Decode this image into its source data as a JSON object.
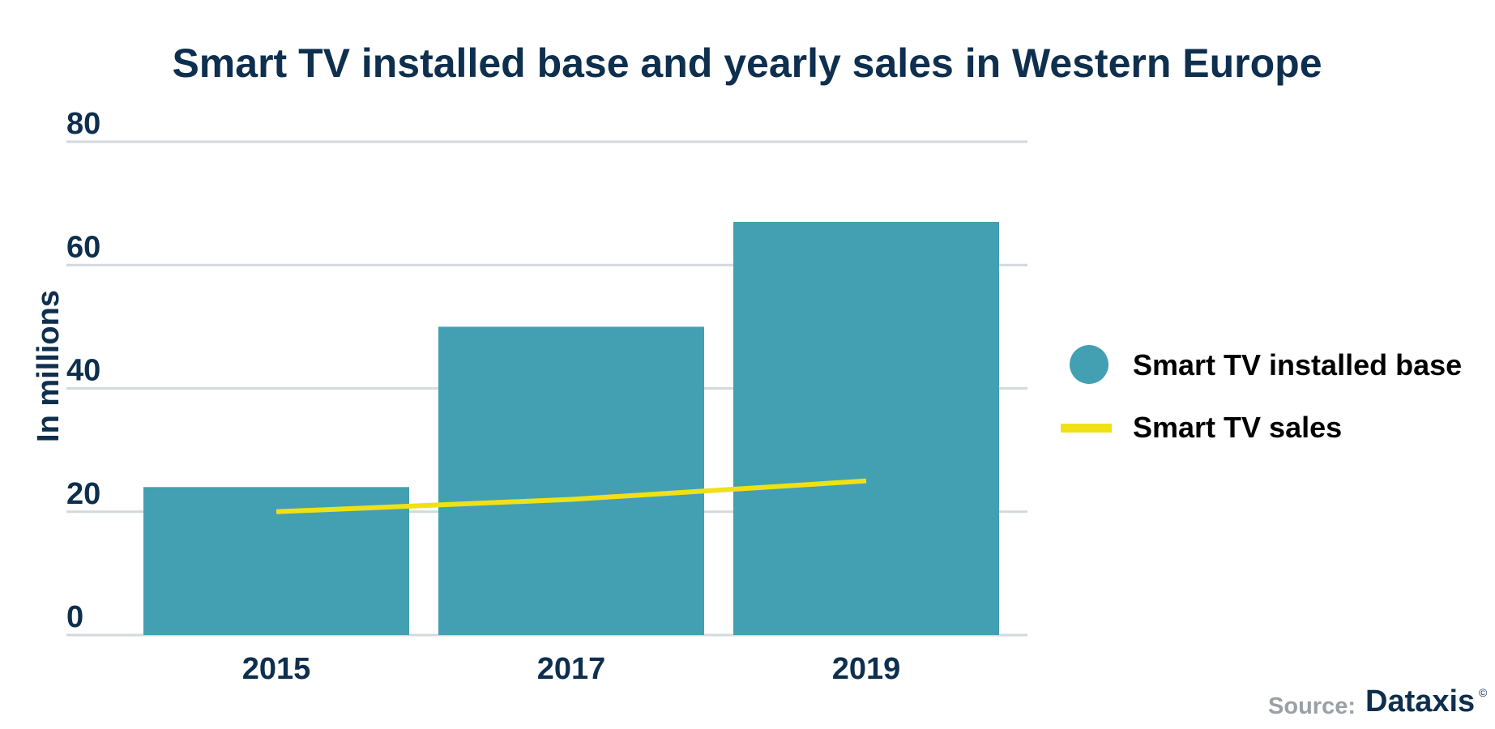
{
  "chart_data": {
    "type": "bar",
    "title": "Smart TV installed base and yearly sales in Western Europe",
    "ylabel": "In millions",
    "xlabel": "",
    "categories": [
      "2015",
      "2017",
      "2019"
    ],
    "ylim": [
      0,
      80
    ],
    "yticks": [
      0,
      20,
      40,
      60,
      80
    ],
    "grid": true,
    "legend_position": "right",
    "series": [
      {
        "name": "Smart TV installed base",
        "type": "bar",
        "color": "#42a0b2",
        "values": [
          24,
          50,
          67
        ]
      },
      {
        "name": "Smart TV sales",
        "type": "line",
        "color": "#f0e116",
        "values": [
          20,
          22,
          25
        ]
      }
    ]
  },
  "source": {
    "label": "Source:",
    "brand": "Dataxis",
    "mark": "©"
  }
}
